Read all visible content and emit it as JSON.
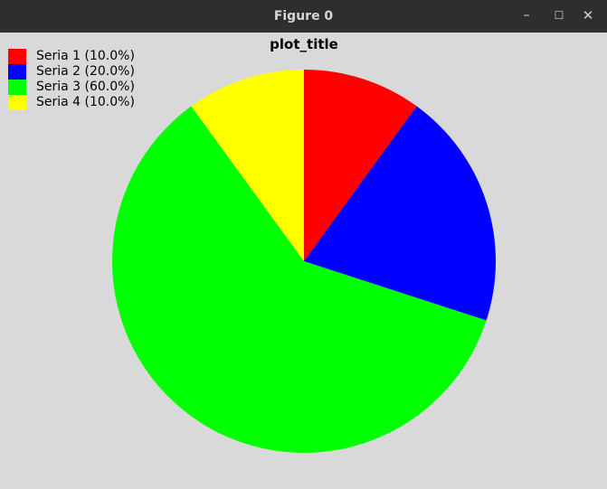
{
  "window": {
    "title": "Figure 0",
    "minimize_glyph": "–",
    "maximize_glyph": "☐",
    "close_glyph": "✕"
  },
  "chart_data": {
    "type": "pie",
    "title": "plot_title",
    "legend_position": "top-left",
    "slices": [
      {
        "name": "Seria 1",
        "value": 10.0,
        "label": "Seria 1 (10.0%)",
        "color": "#ff0000"
      },
      {
        "name": "Seria 2",
        "value": 20.0,
        "label": "Seria 2 (20.0%)",
        "color": "#0000ff"
      },
      {
        "name": "Seria 3",
        "value": 60.0,
        "label": "Seria 3 (60.0%)",
        "color": "#00ff00"
      },
      {
        "name": "Seria 4",
        "value": 10.0,
        "label": "Seria 4 (10.0%)",
        "color": "#ffff00"
      }
    ],
    "start_angle_deg": 90,
    "direction": "clockwise"
  }
}
